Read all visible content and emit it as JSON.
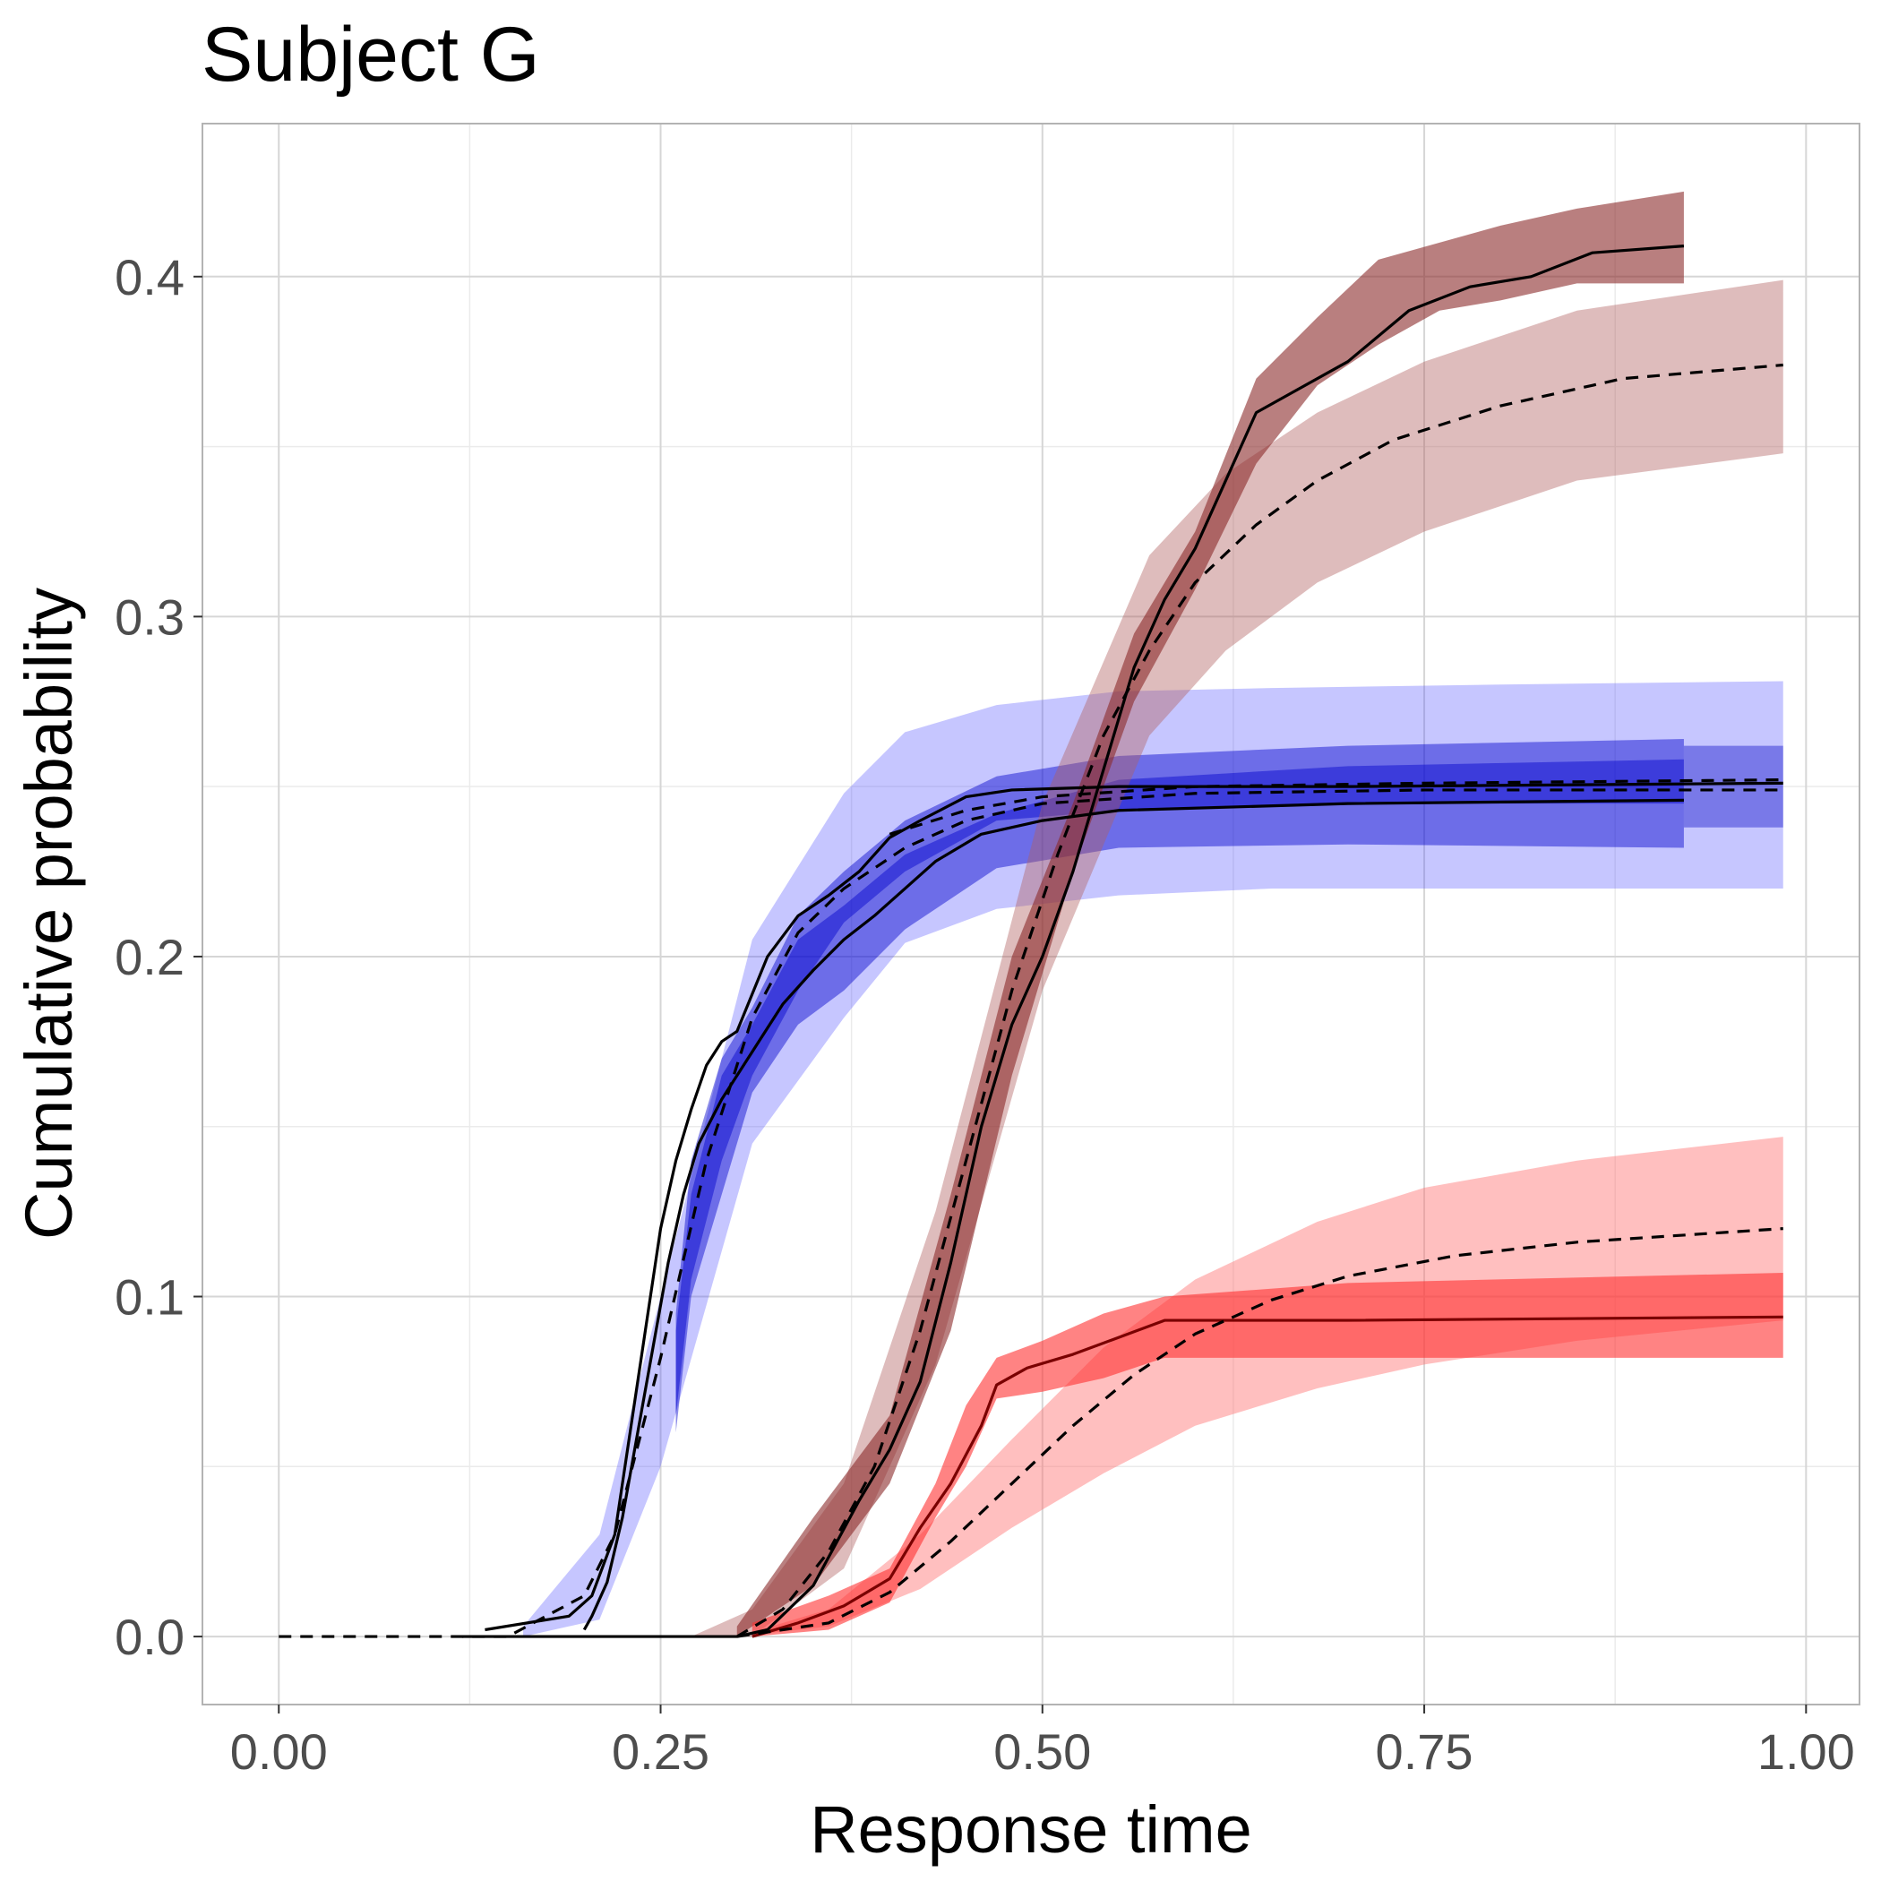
{
  "chart_data": {
    "type": "line",
    "title": "Subject G",
    "xlabel": "Response time",
    "ylabel": "Cumulative probability",
    "xlim": [
      -0.05,
      1.035
    ],
    "ylim": [
      -0.02,
      0.445
    ],
    "x_ticks": [
      0.0,
      0.25,
      0.5,
      0.75,
      1.0
    ],
    "x_tick_labels": [
      "0.00",
      "0.25",
      "0.50",
      "0.75",
      "1.00"
    ],
    "y_ticks": [
      0.0,
      0.1,
      0.2,
      0.3,
      0.4
    ],
    "y_tick_labels": [
      "0.0",
      "0.1",
      "0.2",
      "0.3",
      "0.4"
    ],
    "grid": true,
    "legend": "none",
    "bands": [
      {
        "group": "blue-model",
        "color": "#4d4dff",
        "opacity": 0.32,
        "x": [
          0.16,
          0.21,
          0.25,
          0.31,
          0.37,
          0.41,
          0.47,
          0.55,
          0.65,
          0.8,
          0.985
        ],
        "lower": [
          0.0,
          0.005,
          0.05,
          0.145,
          0.182,
          0.204,
          0.214,
          0.218,
          0.22,
          0.22,
          0.22
        ],
        "upper": [
          0.003,
          0.03,
          0.1,
          0.205,
          0.248,
          0.266,
          0.274,
          0.278,
          0.279,
          0.28,
          0.281
        ]
      },
      {
        "group": "blue-observed-a",
        "color": "#0000cc",
        "opacity": 0.45,
        "x": [
          0.26,
          0.27,
          0.29,
          0.31,
          0.34,
          0.37,
          0.41,
          0.47,
          0.55,
          0.7,
          0.92
        ],
        "lower": [
          0.065,
          0.105,
          0.14,
          0.165,
          0.19,
          0.21,
          0.225,
          0.24,
          0.243,
          0.245,
          0.245
        ],
        "upper": [
          0.095,
          0.14,
          0.17,
          0.185,
          0.212,
          0.225,
          0.24,
          0.253,
          0.259,
          0.262,
          0.264
        ]
      },
      {
        "group": "blue-observed-b",
        "color": "#0000cc",
        "opacity": 0.45,
        "x": [
          0.26,
          0.27,
          0.29,
          0.31,
          0.34,
          0.37,
          0.41,
          0.47,
          0.55,
          0.7,
          0.92
        ],
        "lower": [
          0.06,
          0.1,
          0.13,
          0.16,
          0.18,
          0.19,
          0.208,
          0.226,
          0.232,
          0.233,
          0.232
        ],
        "upper": [
          0.09,
          0.13,
          0.165,
          0.18,
          0.205,
          0.215,
          0.23,
          0.242,
          0.252,
          0.256,
          0.258
        ]
      },
      {
        "group": "blue-model-inner",
        "color": "#1a1acc",
        "opacity": 0.45,
        "x": [
          0.92,
          0.985
        ],
        "lower": [
          0.238,
          0.238
        ],
        "upper": [
          0.262,
          0.262
        ]
      },
      {
        "group": "brown-model",
        "color": "#b06060",
        "opacity": 0.42,
        "x": [
          0.27,
          0.31,
          0.37,
          0.43,
          0.5,
          0.57,
          0.62,
          0.68,
          0.75,
          0.85,
          0.985
        ],
        "lower": [
          0.0,
          0.0,
          0.02,
          0.08,
          0.19,
          0.265,
          0.29,
          0.31,
          0.325,
          0.34,
          0.348
        ],
        "upper": [
          0.0,
          0.008,
          0.045,
          0.125,
          0.245,
          0.318,
          0.342,
          0.36,
          0.375,
          0.39,
          0.399
        ]
      },
      {
        "group": "brown-observed",
        "color": "#8b2a2a",
        "opacity": 0.6,
        "x": [
          0.3,
          0.35,
          0.4,
          0.44,
          0.48,
          0.52,
          0.56,
          0.6,
          0.64,
          0.68,
          0.72,
          0.76,
          0.8,
          0.85,
          0.92
        ],
        "lower": [
          0.0,
          0.015,
          0.045,
          0.09,
          0.165,
          0.225,
          0.275,
          0.308,
          0.345,
          0.368,
          0.38,
          0.39,
          0.393,
          0.398,
          0.398
        ],
        "upper": [
          0.003,
          0.035,
          0.065,
          0.13,
          0.2,
          0.245,
          0.295,
          0.325,
          0.37,
          0.388,
          0.405,
          0.41,
          0.415,
          0.42,
          0.425
        ]
      },
      {
        "group": "red-model",
        "color": "#ff7070",
        "opacity": 0.45,
        "x": [
          0.3,
          0.36,
          0.42,
          0.48,
          0.54,
          0.6,
          0.68,
          0.75,
          0.85,
          0.985
        ],
        "lower": [
          0.0,
          0.003,
          0.014,
          0.032,
          0.048,
          0.062,
          0.073,
          0.08,
          0.087,
          0.093
        ],
        "upper": [
          0.0,
          0.008,
          0.03,
          0.058,
          0.085,
          0.105,
          0.122,
          0.132,
          0.14,
          0.147
        ]
      },
      {
        "group": "red-observed",
        "color": "#ff3030",
        "opacity": 0.6,
        "x": [
          0.31,
          0.36,
          0.4,
          0.43,
          0.45,
          0.47,
          0.5,
          0.54,
          0.58,
          0.7,
          0.985
        ],
        "lower": [
          0.0,
          0.002,
          0.01,
          0.035,
          0.05,
          0.07,
          0.072,
          0.076,
          0.082,
          0.082,
          0.082
        ],
        "upper": [
          0.004,
          0.012,
          0.02,
          0.045,
          0.068,
          0.082,
          0.087,
          0.095,
          0.1,
          0.104,
          0.107
        ]
      }
    ],
    "series": [
      {
        "group": "blue-observed-a",
        "style": "solid",
        "color": "#000000",
        "x": [
          0.135,
          0.19,
          0.205,
          0.22,
          0.23,
          0.24,
          0.25,
          0.26,
          0.27,
          0.28,
          0.29,
          0.3,
          0.32,
          0.34,
          0.36,
          0.38,
          0.4,
          0.42,
          0.45,
          0.48,
          0.55,
          0.7,
          0.985
        ],
        "y": [
          0.002,
          0.006,
          0.012,
          0.03,
          0.06,
          0.09,
          0.12,
          0.14,
          0.155,
          0.168,
          0.175,
          0.178,
          0.2,
          0.212,
          0.218,
          0.225,
          0.235,
          0.24,
          0.247,
          0.249,
          0.25,
          0.25,
          0.251
        ]
      },
      {
        "group": "blue-observed-b",
        "style": "solid",
        "color": "#000000",
        "x": [
          0.2,
          0.205,
          0.215,
          0.225,
          0.235,
          0.245,
          0.255,
          0.265,
          0.275,
          0.29,
          0.31,
          0.33,
          0.35,
          0.37,
          0.39,
          0.41,
          0.43,
          0.46,
          0.5,
          0.55,
          0.7,
          0.92
        ],
        "y": [
          0.002,
          0.006,
          0.016,
          0.035,
          0.06,
          0.085,
          0.11,
          0.13,
          0.145,
          0.158,
          0.172,
          0.186,
          0.196,
          0.205,
          0.212,
          0.22,
          0.228,
          0.236,
          0.24,
          0.243,
          0.245,
          0.246
        ]
      },
      {
        "group": "blue-model",
        "style": "dashed",
        "color": "#000000",
        "x": [
          0.0,
          0.15,
          0.2,
          0.22,
          0.25,
          0.28,
          0.31,
          0.34,
          0.37,
          0.41,
          0.45,
          0.5,
          0.6,
          0.75,
          0.985
        ],
        "y": [
          0.0,
          0.0,
          0.012,
          0.03,
          0.082,
          0.14,
          0.182,
          0.207,
          0.22,
          0.232,
          0.24,
          0.245,
          0.248,
          0.249,
          0.249
        ]
      },
      {
        "group": "blue-model-2",
        "style": "dashed",
        "color": "#000000",
        "x": [
          0.4,
          0.45,
          0.5,
          0.6,
          0.75,
          0.985
        ],
        "y": [
          0.236,
          0.243,
          0.247,
          0.25,
          0.251,
          0.252
        ]
      },
      {
        "group": "brown-observed",
        "style": "solid",
        "color": "#000000",
        "x": [
          0.12,
          0.3,
          0.32,
          0.35,
          0.38,
          0.4,
          0.42,
          0.44,
          0.46,
          0.48,
          0.5,
          0.52,
          0.54,
          0.56,
          0.58,
          0.6,
          0.62,
          0.64,
          0.66,
          0.7,
          0.74,
          0.78,
          0.82,
          0.86,
          0.92
        ],
        "y": [
          0.0,
          0.0,
          0.002,
          0.015,
          0.04,
          0.055,
          0.075,
          0.11,
          0.15,
          0.18,
          0.2,
          0.225,
          0.255,
          0.285,
          0.305,
          0.32,
          0.34,
          0.36,
          0.365,
          0.375,
          0.39,
          0.397,
          0.4,
          0.407,
          0.409
        ]
      },
      {
        "group": "brown-model",
        "style": "dashed",
        "color": "#000000",
        "x": [
          0.3,
          0.33,
          0.36,
          0.39,
          0.42,
          0.45,
          0.48,
          0.51,
          0.54,
          0.57,
          0.6,
          0.64,
          0.68,
          0.73,
          0.8,
          0.88,
          0.985
        ],
        "y": [
          0.0,
          0.008,
          0.025,
          0.05,
          0.09,
          0.14,
          0.19,
          0.23,
          0.265,
          0.29,
          0.31,
          0.327,
          0.34,
          0.352,
          0.362,
          0.37,
          0.374
        ]
      },
      {
        "group": "red-observed",
        "style": "solid",
        "color": "#7a0000",
        "x": [
          0.31,
          0.34,
          0.37,
          0.4,
          0.42,
          0.44,
          0.46,
          0.47,
          0.49,
          0.52,
          0.55,
          0.58,
          0.7,
          0.985
        ],
        "y": [
          0.0,
          0.004,
          0.009,
          0.017,
          0.032,
          0.045,
          0.062,
          0.074,
          0.079,
          0.083,
          0.088,
          0.093,
          0.093,
          0.094
        ]
      },
      {
        "group": "red-model",
        "style": "dashed",
        "color": "#000000",
        "x": [
          0.3,
          0.36,
          0.4,
          0.44,
          0.48,
          0.52,
          0.56,
          0.6,
          0.65,
          0.7,
          0.77,
          0.85,
          0.985
        ],
        "y": [
          0.0,
          0.004,
          0.013,
          0.028,
          0.045,
          0.062,
          0.077,
          0.089,
          0.099,
          0.106,
          0.112,
          0.116,
          0.12
        ]
      }
    ]
  }
}
